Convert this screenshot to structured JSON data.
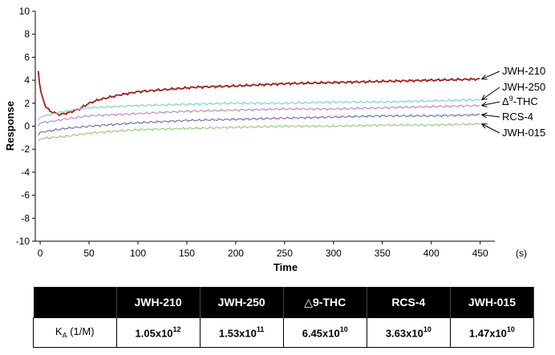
{
  "chart_data": {
    "type": "line",
    "xlabel": "Time",
    "xunit": "(s)",
    "ylabel": "Response",
    "xlim": [
      -5,
      465
    ],
    "ylim": [
      -10,
      10
    ],
    "x_ticks": [
      "0",
      "50",
      "100",
      "150",
      "200",
      "250",
      "300",
      "350",
      "400",
      "450"
    ],
    "x_tick_values": [
      0,
      50,
      100,
      150,
      200,
      250,
      300,
      350,
      400,
      450
    ],
    "y_ticks": [
      "10",
      "8",
      "6",
      "4",
      "2",
      "0",
      "-2",
      "-4",
      "-6",
      "-8",
      "-10"
    ],
    "y_tick_values": [
      10,
      8,
      6,
      4,
      2,
      0,
      -2,
      -4,
      -6,
      -8,
      -10
    ],
    "grid": false,
    "legend": "right, arrow labels",
    "series": [
      {
        "name": "JWH-210",
        "color": "#a0211c",
        "x": [
          -2,
          0,
          5,
          10,
          20,
          30,
          40,
          50,
          60,
          80,
          100,
          130,
          160,
          200,
          250,
          300,
          350,
          400,
          450
        ],
        "y": [
          4.8,
          3.2,
          1.8,
          1.3,
          1.0,
          1.2,
          1.5,
          2.0,
          2.3,
          2.7,
          3.0,
          3.2,
          3.4,
          3.5,
          3.7,
          3.8,
          3.9,
          4.0,
          4.1
        ]
      },
      {
        "name": "JWH-250",
        "color": "#7ccfc4",
        "x": [
          -2,
          0,
          10,
          25,
          50,
          100,
          150,
          200,
          250,
          300,
          350,
          400,
          450
        ],
        "y": [
          0.5,
          0.8,
          1.0,
          1.3,
          1.6,
          1.8,
          1.9,
          2.0,
          2.0,
          2.1,
          2.1,
          2.2,
          2.3
        ]
      },
      {
        "name": "Δ9-THC",
        "color": "#b987c2",
        "x": [
          -2,
          0,
          10,
          25,
          50,
          100,
          150,
          200,
          250,
          300,
          350,
          400,
          450
        ],
        "y": [
          0.0,
          0.3,
          0.4,
          0.6,
          0.9,
          1.1,
          1.3,
          1.4,
          1.5,
          1.5,
          1.6,
          1.7,
          1.8
        ]
      },
      {
        "name": "RCS-4",
        "color": "#6c6ca8",
        "x": [
          -2,
          0,
          10,
          25,
          50,
          100,
          150,
          200,
          250,
          300,
          350,
          400,
          450
        ],
        "y": [
          -0.8,
          -0.5,
          -0.4,
          -0.2,
          0.0,
          0.3,
          0.5,
          0.6,
          0.7,
          0.8,
          0.9,
          0.9,
          1.0
        ]
      },
      {
        "name": "JWH-015",
        "color": "#93c97e",
        "x": [
          -2,
          0,
          10,
          25,
          50,
          100,
          150,
          200,
          250,
          300,
          350,
          400,
          450
        ],
        "y": [
          -1.3,
          -1.1,
          -1.0,
          -0.9,
          -0.6,
          -0.3,
          -0.2,
          -0.1,
          0.0,
          0.0,
          0.1,
          0.1,
          0.2
        ]
      }
    ]
  },
  "table": {
    "headers": [
      "",
      "JWH-210",
      "JWH-250",
      "△9-THC",
      "RCS-4",
      "JWH-015"
    ],
    "row_label": {
      "main": "K",
      "sub": "A",
      "rest": " (1/M)"
    },
    "values": [
      {
        "mantissa": "1.05x10",
        "exp": "12"
      },
      {
        "mantissa": "1.53x10",
        "exp": "11"
      },
      {
        "mantissa": "6.45x10",
        "exp": "10"
      },
      {
        "mantissa": "3.63x10",
        "exp": "10"
      },
      {
        "mantissa": "1.47x10",
        "exp": "10"
      }
    ]
  },
  "colors": {
    "axis": "#000000",
    "table_header_bg": "#000000",
    "table_header_text": "#ffffff"
  }
}
